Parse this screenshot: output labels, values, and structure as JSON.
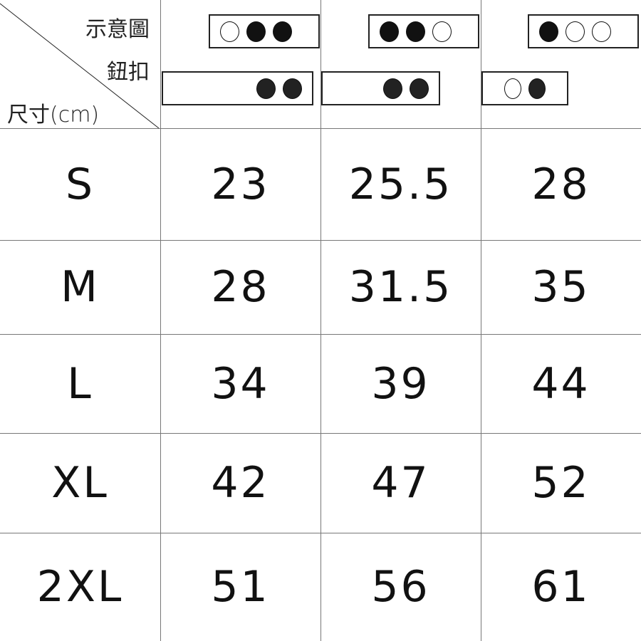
{
  "header": {
    "diagram_label": "示意圖",
    "button_label": "鈕扣",
    "size_label": "尺寸(cm)",
    "columns": [
      {
        "diagram": [
          "empty",
          "filled",
          "filled"
        ],
        "buttons": [
          "filled",
          "filled"
        ]
      },
      {
        "diagram": [
          "filled",
          "filled",
          "empty"
        ],
        "buttons": [
          "filled",
          "filled"
        ]
      },
      {
        "diagram": [
          "filled",
          "empty",
          "empty"
        ],
        "buttons": [
          "empty",
          "filled"
        ]
      }
    ]
  },
  "rows": [
    {
      "size": "S",
      "values": [
        "23",
        "25.5",
        "28"
      ]
    },
    {
      "size": "M",
      "values": [
        "28",
        "31.5",
        "35"
      ]
    },
    {
      "size": "L",
      "values": [
        "34",
        "39",
        "44"
      ]
    },
    {
      "size": "XL",
      "values": [
        "42",
        "47",
        "52"
      ]
    },
    {
      "size": "2XL",
      "values": [
        "51",
        "56",
        "61"
      ]
    }
  ]
}
